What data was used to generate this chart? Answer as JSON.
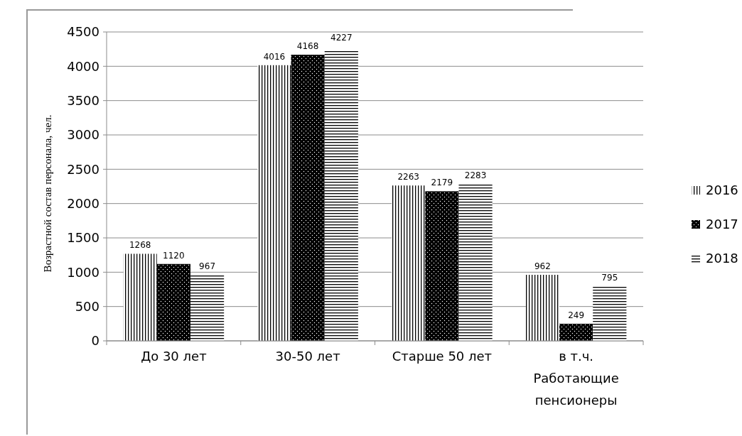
{
  "chart_data": {
    "type": "bar",
    "ylabel": "Возрастной состав персонала, чел.",
    "categories": [
      "До 30 лет",
      "30-50 лет",
      "Старше 50 лет",
      "в т.ч. Работающие пенсионеры"
    ],
    "series": [
      {
        "name": "2016",
        "color": "#000000",
        "values": [
          1268,
          4016,
          2263,
          962
        ]
      },
      {
        "name": "2017",
        "color": "#000000",
        "values": [
          1120,
          4168,
          2179,
          249
        ]
      },
      {
        "name": "2018",
        "color": "#000000",
        "values": [
          967,
          4227,
          2283,
          795
        ]
      }
    ],
    "ylim": [
      0,
      4500
    ],
    "yticks": [
      0,
      500,
      1000,
      1500,
      2000,
      2500,
      3000,
      3500,
      4000,
      4500
    ],
    "grid": "y",
    "legend": "right",
    "data_labels": true
  }
}
